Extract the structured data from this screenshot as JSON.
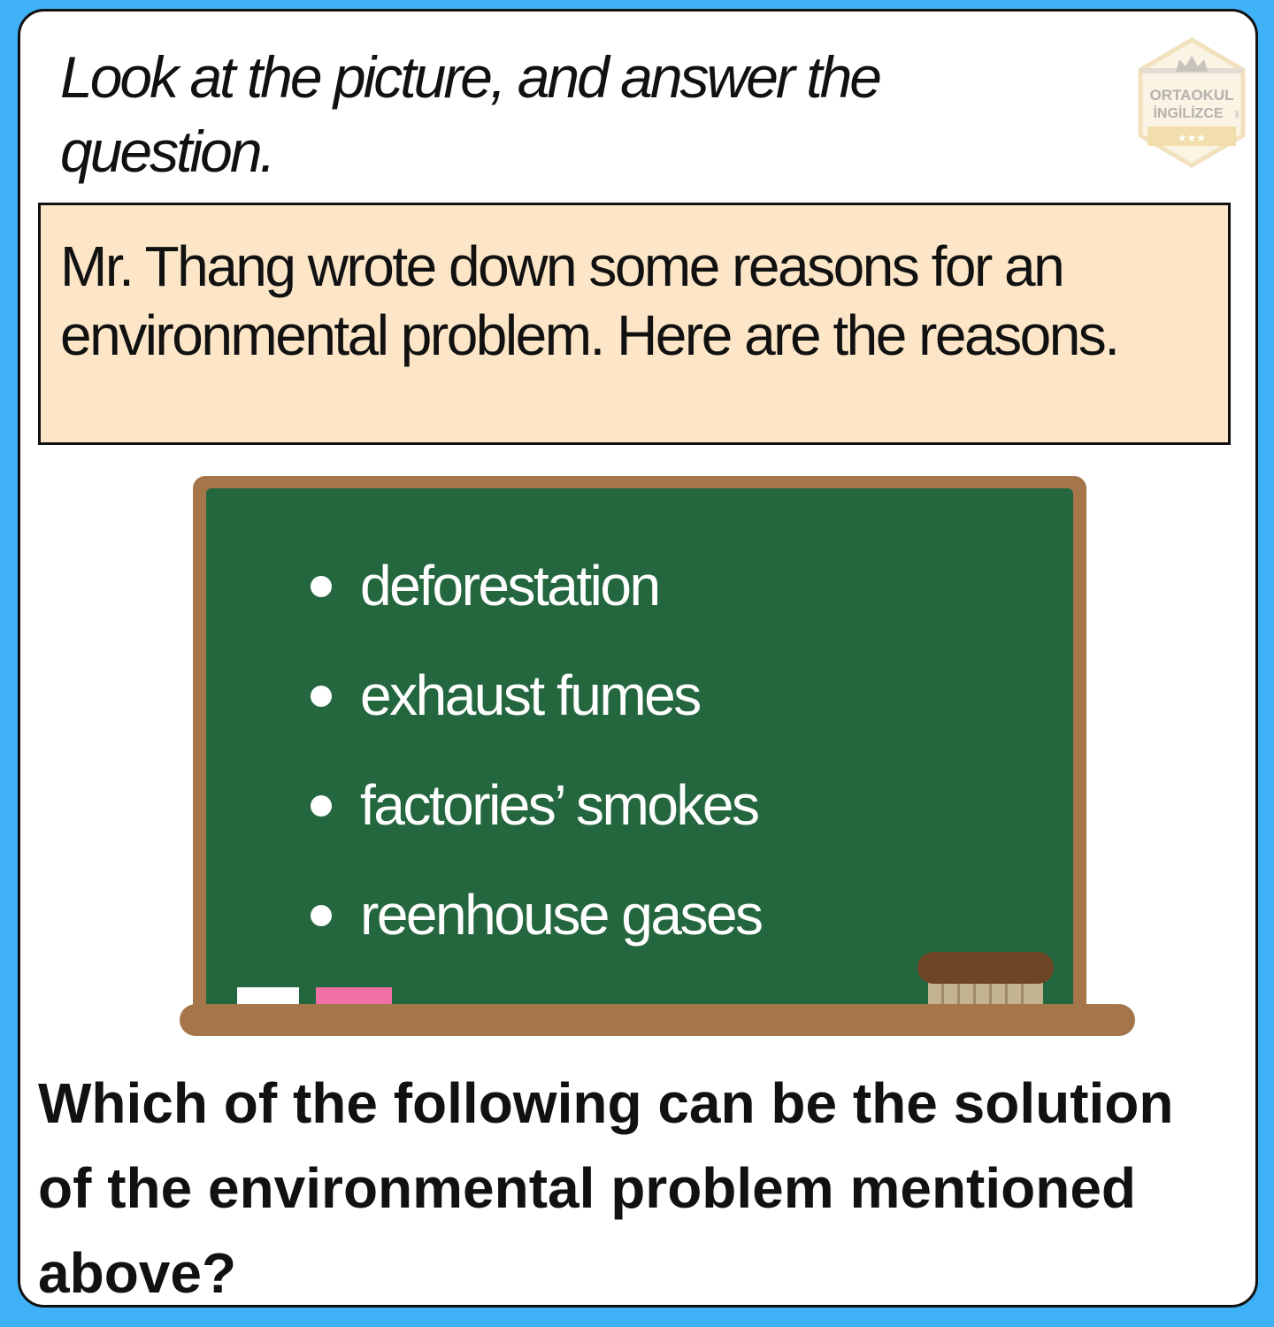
{
  "instruction": "Look at the picture, and answer the question.",
  "badge": {
    "line1": "ORTAOKUL",
    "line2": "İNGİLİZCE",
    "suffix": ".net"
  },
  "context": "Mr. Thang wrote down some reasons for an environmental problem. Here are the reasons.",
  "chalkboard": {
    "reasons": [
      "deforestation",
      "exhaust fumes",
      "factories’ smokes",
      "reenhouse gases"
    ]
  },
  "question": "Which of the following can be the solution of the environmental problem mentioned above?",
  "colors": {
    "page_background": "#3fb1f7",
    "context_box": "#fce6c7",
    "board_frame": "#a5764a",
    "board_surface": "#24663e",
    "pink_chalk": "#f06fa4",
    "eraser": "#6e4526"
  }
}
